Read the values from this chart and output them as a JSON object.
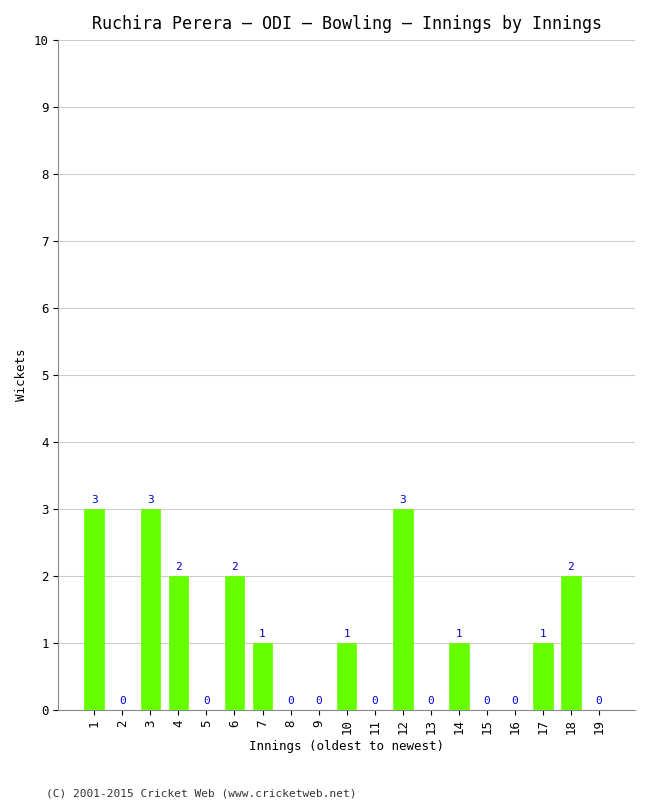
{
  "title": "Ruchira Perera – ODI – Bowling – Innings by Innings",
  "xlabel": "Innings (oldest to newest)",
  "ylabel": "Wickets",
  "innings": [
    1,
    2,
    3,
    4,
    5,
    6,
    7,
    8,
    9,
    10,
    11,
    12,
    13,
    14,
    15,
    16,
    17,
    18,
    19
  ],
  "wickets": [
    3,
    0,
    3,
    2,
    0,
    2,
    1,
    0,
    0,
    1,
    0,
    3,
    0,
    1,
    0,
    0,
    1,
    2,
    0
  ],
  "bar_color": "#66ff00",
  "bar_edge_color": "#66ff00",
  "label_color": "#0000cc",
  "ylim": [
    0,
    10
  ],
  "yticks": [
    0,
    1,
    2,
    3,
    4,
    5,
    6,
    7,
    8,
    9,
    10
  ],
  "background_color": "#ffffff",
  "grid_color": "#cccccc",
  "title_fontsize": 12,
  "axis_label_fontsize": 9,
  "tick_label_fontsize": 9,
  "bar_label_fontsize": 8,
  "footer": "(C) 2001-2015 Cricket Web (www.cricketweb.net)",
  "footer_fontsize": 8
}
